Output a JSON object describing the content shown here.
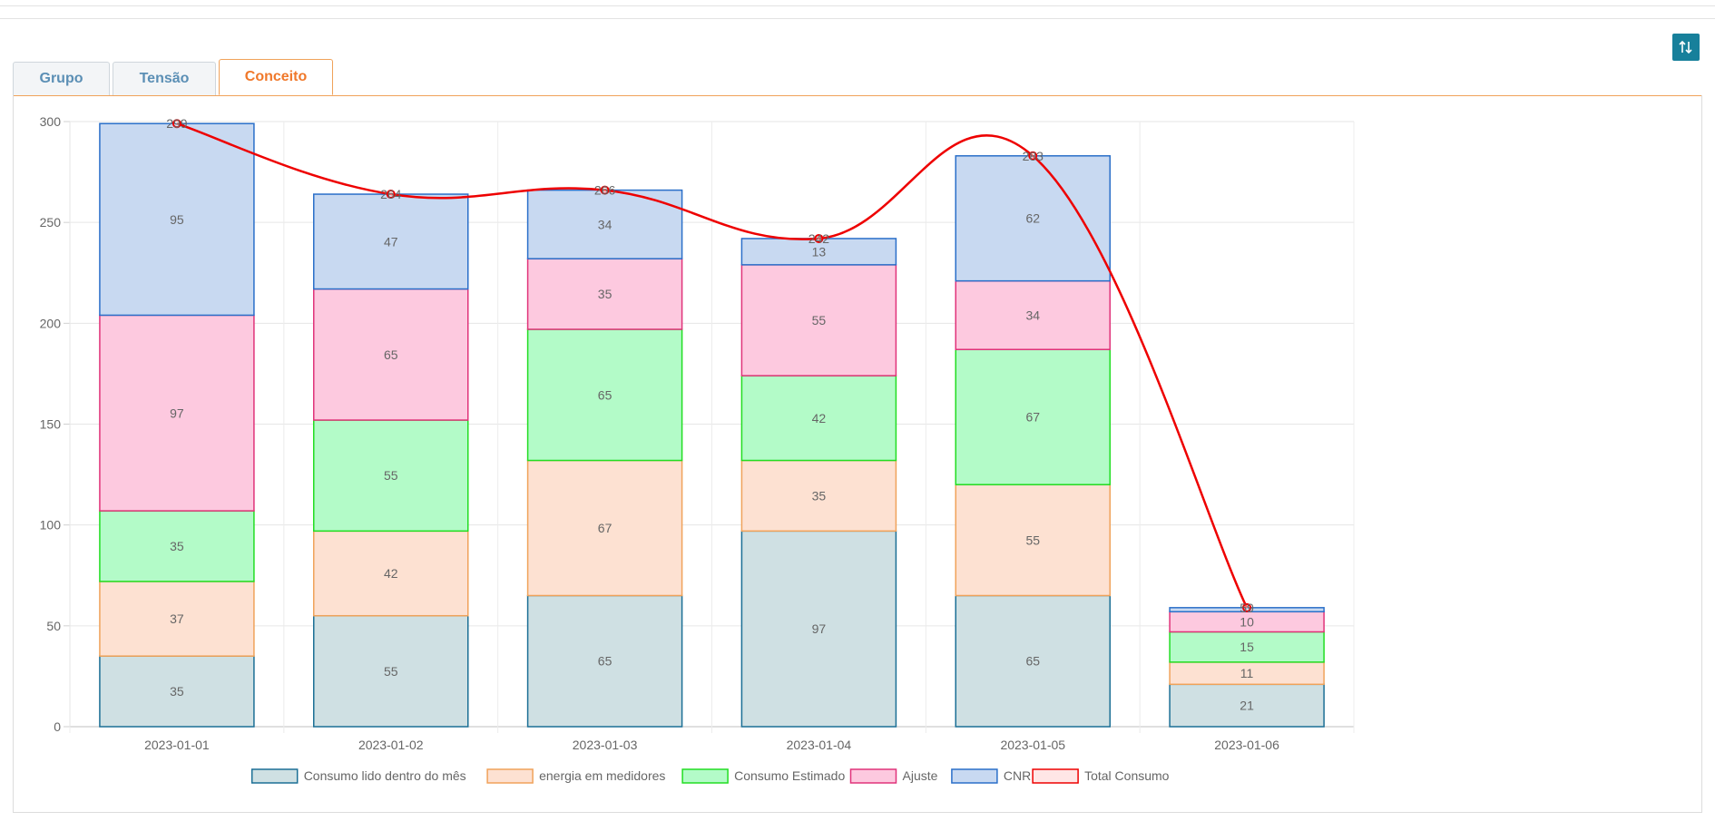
{
  "tabs": [
    {
      "label": "Grupo",
      "active": false
    },
    {
      "label": "Tensão",
      "active": false
    },
    {
      "label": "Conceito",
      "active": true
    }
  ],
  "toolbar": {
    "sort_icon": "sort-arrows-icon",
    "button_color": "#17809b"
  },
  "chart_data": {
    "type": "bar",
    "stacked": true,
    "categories": [
      "2023-01-01",
      "2023-01-02",
      "2023-01-03",
      "2023-01-04",
      "2023-01-05",
      "2023-01-06"
    ],
    "ylim": [
      0,
      300
    ],
    "yticks": [
      0,
      50,
      100,
      150,
      200,
      250,
      300
    ],
    "grid": true,
    "legend_position": "bottom",
    "series": [
      {
        "name": "Consumo lido dentro do mês",
        "values": [
          35,
          55,
          65,
          97,
          65,
          21
        ],
        "fill": "#cfe0e3",
        "stroke": "#1b6f95"
      },
      {
        "name": "energia em medidores",
        "values": [
          37,
          42,
          67,
          35,
          55,
          11
        ],
        "fill": "#fde1d2",
        "stroke": "#f0a25a"
      },
      {
        "name": "Consumo Estimado",
        "values": [
          35,
          55,
          65,
          42,
          67,
          15
        ],
        "fill": "#b3fbc8",
        "stroke": "#22dd22"
      },
      {
        "name": "Ajuste",
        "values": [
          97,
          65,
          35,
          55,
          34,
          10
        ],
        "fill": "#fdc9df",
        "stroke": "#e0337a"
      },
      {
        "name": "CNR",
        "values": [
          95,
          47,
          34,
          13,
          62,
          2
        ],
        "fill": "#c8d9f1",
        "stroke": "#2a6fc9"
      }
    ],
    "line_series": {
      "name": "Total Consumo",
      "values": [
        299,
        264,
        266,
        242,
        283,
        59
      ],
      "color": "#ee0000"
    },
    "total_labels": [
      "299",
      "264",
      "266",
      "242",
      "283",
      "59"
    ]
  }
}
